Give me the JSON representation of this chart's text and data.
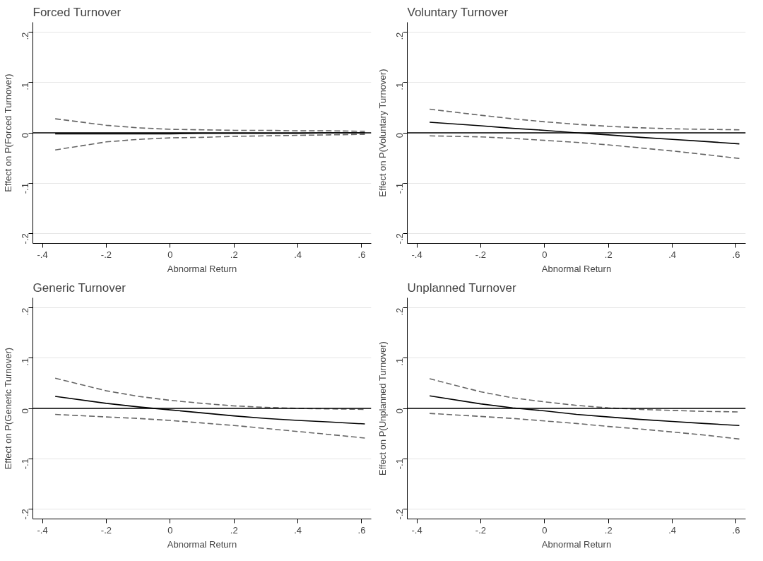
{
  "chart_data": [
    {
      "type": "line",
      "title": "Forced Turnover",
      "xlabel": "Abnormal Return",
      "ylabel": "Effect on P(Forced Turnover)",
      "grid": "y",
      "x": [
        -0.36,
        -0.2,
        -0.1,
        0,
        0.1,
        0.2,
        0.3,
        0.4,
        0.5,
        0.61
      ],
      "series": [
        {
          "color": "#000000",
          "line_style": "solid",
          "values": [
            -0.002,
            -0.002,
            -0.002,
            -0.002,
            -0.001,
            -0.001,
            -0.001,
            -0.001,
            0.0,
            0.0
          ]
        },
        {
          "color": "#666666",
          "line_style": "dashed",
          "values": [
            0.028,
            0.015,
            0.01,
            0.007,
            0.006,
            0.005,
            0.005,
            0.004,
            0.004,
            0.003
          ]
        },
        {
          "color": "#666666",
          "line_style": "dashed",
          "values": [
            -0.034,
            -0.018,
            -0.013,
            -0.01,
            -0.009,
            -0.007,
            -0.006,
            -0.005,
            -0.004,
            -0.003
          ]
        }
      ],
      "ref_lines": [
        {
          "axis": "y",
          "value": 0,
          "color": "#000000",
          "line_style": "solid"
        }
      ],
      "xlim": [
        -0.43,
        0.63
      ],
      "ylim": [
        -0.22,
        0.22
      ],
      "xticks": [
        {
          "value": -0.4,
          "label": "-.4"
        },
        {
          "value": -0.2,
          "label": "-.2"
        },
        0,
        {
          "value": 0.2,
          "label": ".2"
        },
        {
          "value": 0.4,
          "label": ".4"
        },
        {
          "value": 0.6,
          "label": ".6"
        }
      ],
      "yticks": [
        {
          "value": -0.2,
          "label": "-.2"
        },
        {
          "value": -0.1,
          "label": "-.1"
        },
        0,
        {
          "value": 0.1,
          "label": ".1"
        },
        {
          "value": 0.2,
          "label": ".2"
        }
      ]
    },
    {
      "type": "line",
      "title": "Voluntary Turnover",
      "xlabel": "Abnormal Return",
      "ylabel": "Effect on P(Voluntary Turnover)",
      "grid": "y",
      "x": [
        -0.36,
        -0.2,
        -0.1,
        0,
        0.1,
        0.2,
        0.3,
        0.4,
        0.5,
        0.61
      ],
      "series": [
        {
          "color": "#000000",
          "line_style": "solid",
          "values": [
            0.021,
            0.014,
            0.009,
            0.005,
            0.0,
            -0.004,
            -0.009,
            -0.013,
            -0.017,
            -0.022
          ]
        },
        {
          "color": "#666666",
          "line_style": "dashed",
          "values": [
            0.047,
            0.035,
            0.028,
            0.022,
            0.017,
            0.013,
            0.01,
            0.008,
            0.007,
            0.006
          ]
        },
        {
          "color": "#666666",
          "line_style": "dashed",
          "values": [
            -0.006,
            -0.008,
            -0.011,
            -0.015,
            -0.019,
            -0.024,
            -0.03,
            -0.036,
            -0.043,
            -0.051
          ]
        }
      ],
      "ref_lines": [
        {
          "axis": "y",
          "value": 0,
          "color": "#000000",
          "line_style": "solid"
        }
      ],
      "xlim": [
        -0.43,
        0.63
      ],
      "ylim": [
        -0.22,
        0.22
      ],
      "xticks": [
        {
          "value": -0.4,
          "label": "-.4"
        },
        {
          "value": -0.2,
          "label": "-.2"
        },
        0,
        {
          "value": 0.2,
          "label": ".2"
        },
        {
          "value": 0.4,
          "label": ".4"
        },
        {
          "value": 0.6,
          "label": ".6"
        }
      ],
      "yticks": [
        {
          "value": -0.2,
          "label": "-.2"
        },
        {
          "value": -0.1,
          "label": "-.1"
        },
        0,
        {
          "value": 0.1,
          "label": ".1"
        },
        {
          "value": 0.2,
          "label": ".2"
        }
      ]
    },
    {
      "type": "line",
      "title": "Generic Turnover",
      "xlabel": "Abnormal Return",
      "ylabel": "Effect on P(Generic Turnover)",
      "grid": "y",
      "x": [
        -0.36,
        -0.2,
        -0.1,
        0,
        0.1,
        0.2,
        0.3,
        0.4,
        0.5,
        0.61
      ],
      "series": [
        {
          "color": "#000000",
          "line_style": "solid",
          "values": [
            0.024,
            0.01,
            0.003,
            -0.003,
            -0.009,
            -0.015,
            -0.02,
            -0.024,
            -0.027,
            -0.031
          ]
        },
        {
          "color": "#666666",
          "line_style": "dashed",
          "values": [
            0.06,
            0.035,
            0.024,
            0.016,
            0.01,
            0.005,
            0.002,
            0.0,
            -0.001,
            -0.002
          ]
        },
        {
          "color": "#666666",
          "line_style": "dashed",
          "values": [
            -0.012,
            -0.017,
            -0.02,
            -0.024,
            -0.029,
            -0.034,
            -0.04,
            -0.046,
            -0.052,
            -0.059
          ]
        }
      ],
      "ref_lines": [
        {
          "axis": "y",
          "value": 0,
          "color": "#000000",
          "line_style": "solid"
        }
      ],
      "xlim": [
        -0.43,
        0.63
      ],
      "ylim": [
        -0.22,
        0.22
      ],
      "xticks": [
        {
          "value": -0.4,
          "label": "-.4"
        },
        {
          "value": -0.2,
          "label": "-.2"
        },
        0,
        {
          "value": 0.2,
          "label": ".2"
        },
        {
          "value": 0.4,
          "label": ".4"
        },
        {
          "value": 0.6,
          "label": ".6"
        }
      ],
      "yticks": [
        {
          "value": -0.2,
          "label": "-.2"
        },
        {
          "value": -0.1,
          "label": "-.1"
        },
        0,
        {
          "value": 0.1,
          "label": ".1"
        },
        {
          "value": 0.2,
          "label": ".2"
        }
      ]
    },
    {
      "type": "line",
      "title": "Unplanned Turnover",
      "xlabel": "Abnormal Return",
      "ylabel": "Effect on P(Unplanned Turnover)",
      "grid": "y",
      "x": [
        -0.36,
        -0.2,
        -0.1,
        0,
        0.1,
        0.2,
        0.3,
        0.4,
        0.5,
        0.61
      ],
      "series": [
        {
          "color": "#000000",
          "line_style": "solid",
          "values": [
            0.025,
            0.009,
            0.001,
            -0.005,
            -0.012,
            -0.017,
            -0.022,
            -0.026,
            -0.03,
            -0.034
          ]
        },
        {
          "color": "#666666",
          "line_style": "dashed",
          "values": [
            0.059,
            0.033,
            0.021,
            0.013,
            0.006,
            0.001,
            -0.002,
            -0.004,
            -0.006,
            -0.007
          ]
        },
        {
          "color": "#666666",
          "line_style": "dashed",
          "values": [
            -0.01,
            -0.016,
            -0.02,
            -0.025,
            -0.03,
            -0.036,
            -0.041,
            -0.047,
            -0.053,
            -0.061
          ]
        }
      ],
      "ref_lines": [
        {
          "axis": "y",
          "value": 0,
          "color": "#000000",
          "line_style": "solid"
        }
      ],
      "xlim": [
        -0.43,
        0.63
      ],
      "ylim": [
        -0.22,
        0.22
      ],
      "xticks": [
        {
          "value": -0.4,
          "label": "-.4"
        },
        {
          "value": -0.2,
          "label": "-.2"
        },
        0,
        {
          "value": 0.2,
          "label": ".2"
        },
        {
          "value": 0.4,
          "label": ".4"
        },
        {
          "value": 0.6,
          "label": ".6"
        }
      ],
      "yticks": [
        {
          "value": -0.2,
          "label": "-.2"
        },
        {
          "value": -0.1,
          "label": "-.1"
        },
        0,
        {
          "value": 0.1,
          "label": ".1"
        },
        {
          "value": 0.2,
          "label": ".2"
        }
      ]
    }
  ]
}
